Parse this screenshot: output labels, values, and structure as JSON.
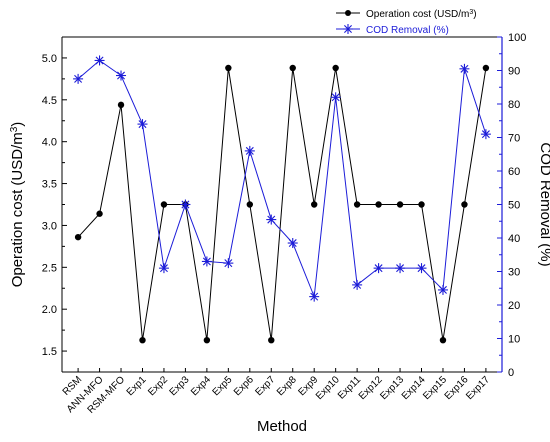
{
  "chart_data": {
    "type": "line",
    "categories": [
      "RSM",
      "ANN-MFO",
      "RSM-MFO",
      "Exp1",
      "Exp2",
      "Exp3",
      "Exp4",
      "Exp5",
      "Exp6",
      "Exp7",
      "Exp8",
      "Exp9",
      "Exp10",
      "Exp11",
      "Exp12",
      "Exp13",
      "Exp14",
      "Exp15",
      "Exp16",
      "Exp17"
    ],
    "xlabel": "Method",
    "ylabel_left": "Operation cost (USD/m³)",
    "ylabel_right": "COD Removal (%)",
    "ylim_left": [
      1.25,
      5.25
    ],
    "ylim_right": [
      0,
      100
    ],
    "yticks_left": [
      "1.5",
      "2.0",
      "2.5",
      "3.0",
      "3.5",
      "4.0",
      "4.5",
      "5.0"
    ],
    "yticks_right": [
      "0",
      "10",
      "20",
      "30",
      "40",
      "50",
      "60",
      "70",
      "80",
      "90",
      "100"
    ],
    "legend_position": "top-right",
    "series": [
      {
        "name": "Operation cost (USD/m³)",
        "axis": "left",
        "color": "#000000",
        "marker": "filled-circle",
        "values": [
          2.86,
          3.14,
          4.44,
          1.63,
          3.25,
          3.25,
          1.63,
          4.88,
          3.25,
          1.63,
          4.88,
          3.25,
          4.88,
          3.25,
          3.25,
          3.25,
          3.25,
          1.63,
          3.25,
          4.88
        ]
      },
      {
        "name": "COD Removal (%)",
        "axis": "right",
        "color": "#1c1cd8",
        "marker": "asterisk",
        "values": [
          87.5,
          93,
          88.5,
          74,
          31,
          50,
          33,
          32.5,
          66,
          45.5,
          38.5,
          22.5,
          82,
          26,
          31,
          31,
          31,
          24.5,
          90.5,
          71
        ]
      }
    ]
  }
}
